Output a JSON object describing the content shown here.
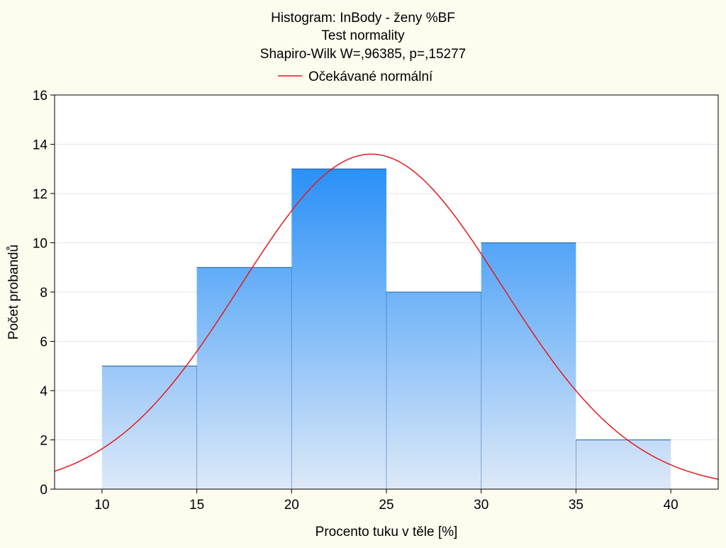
{
  "chart_data": {
    "type": "bar",
    "title": "Histogram: InBody - ženy %BF",
    "subtitle": "Test normality",
    "statistic": "Shapiro-Wilk W=,96385, p=,15277",
    "xlabel": "Procento tuku v těle [%]",
    "ylabel": "Počet probandů",
    "legend": {
      "position": "top-center",
      "entries": [
        {
          "label": "Očekávané normální",
          "color": "#e31a1c"
        }
      ]
    },
    "bins": [
      {
        "from": 10,
        "to": 15,
        "count": 5
      },
      {
        "from": 15,
        "to": 20,
        "count": 9
      },
      {
        "from": 20,
        "to": 25,
        "count": 13
      },
      {
        "from": 25,
        "to": 30,
        "count": 8
      },
      {
        "from": 30,
        "to": 35,
        "count": 10
      },
      {
        "from": 35,
        "to": 40,
        "count": 2
      }
    ],
    "normal_curve": {
      "name": "Očekávané normální",
      "mean": 24.2,
      "sd": 6.9,
      "scale": 235.2,
      "color": "#e31a1c"
    },
    "xlim": [
      7.5,
      42.5
    ],
    "ylim": [
      0,
      16
    ],
    "xticks": [
      10,
      15,
      20,
      25,
      30,
      35,
      40
    ],
    "yticks": [
      0,
      2,
      4,
      6,
      8,
      10,
      12,
      14,
      16
    ],
    "grid": true,
    "colors": {
      "background": "#fefbef",
      "plot_area": "#ffffff",
      "bar_top": "#2a90f8",
      "bar_bottom": "#dde9f8",
      "bar_edge": "#1c5ea8",
      "grid": "#e6e6e6"
    }
  }
}
